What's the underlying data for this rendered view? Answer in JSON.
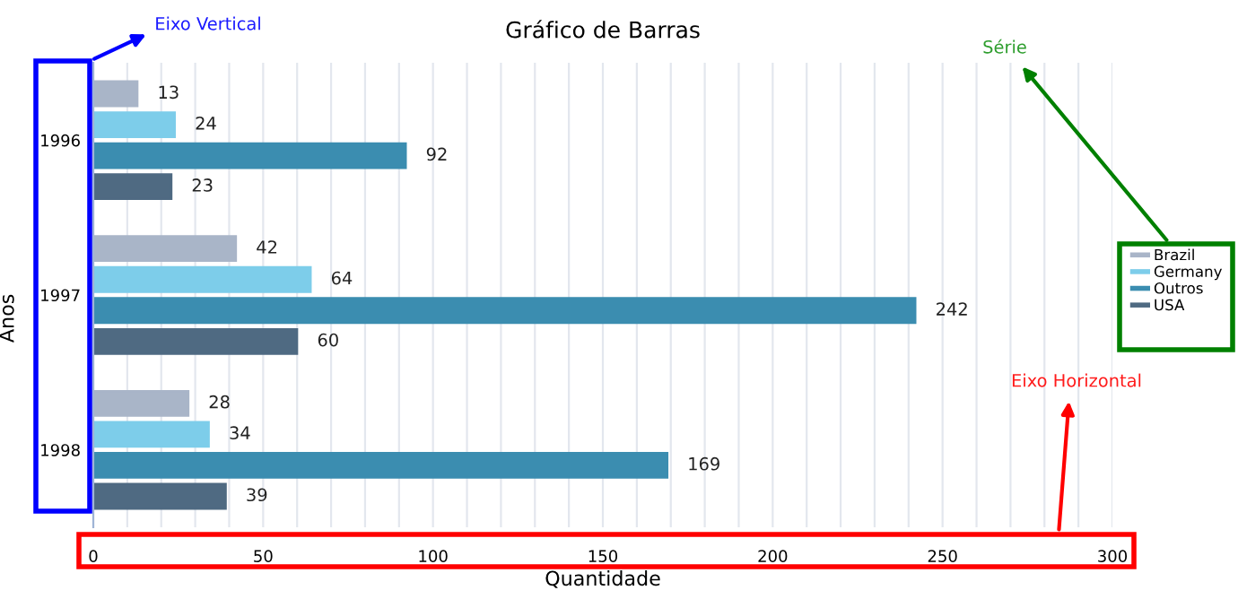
{
  "chart_data": {
    "type": "bar",
    "orientation": "horizontal",
    "title": "Gráfico de Barras",
    "xlabel": "Quantidade",
    "ylabel": "Anos",
    "categories": [
      "1996",
      "1997",
      "1998"
    ],
    "series": [
      {
        "name": "Brazil",
        "color": "#a9b5c8",
        "values": [
          13,
          42,
          28
        ]
      },
      {
        "name": "Germany",
        "color": "#7dcdea",
        "values": [
          24,
          64,
          34
        ]
      },
      {
        "name": "Outros",
        "color": "#3b8db0",
        "values": [
          92,
          242,
          169
        ]
      },
      {
        "name": "USA",
        "color": "#4f6a82",
        "values": [
          23,
          60,
          39
        ]
      }
    ],
    "xlim": [
      0,
      300
    ],
    "xticks": [
      0,
      {
        "value": 10,
        "label": null
      },
      {
        "value": 20,
        "label": null
      },
      {
        "value": 30,
        "label": null
      },
      {
        "value": 40,
        "label": null
      },
      50,
      {
        "value": 60,
        "label": null
      },
      {
        "value": 70,
        "label": null
      },
      {
        "value": 80,
        "label": null
      },
      {
        "value": 90,
        "label": null
      },
      100,
      {
        "value": 110,
        "label": null
      },
      {
        "value": 120,
        "label": null
      },
      {
        "value": 130,
        "label": null
      },
      {
        "value": 140,
        "label": null
      },
      150,
      {
        "value": 160,
        "label": null
      },
      {
        "value": 170,
        "label": null
      },
      {
        "value": 180,
        "label": null
      },
      {
        "value": 190,
        "label": null
      },
      200,
      {
        "value": 210,
        "label": null
      },
      {
        "value": 220,
        "label": null
      },
      {
        "value": 230,
        "label": null
      },
      {
        "value": 240,
        "label": null
      },
      250,
      {
        "value": 260,
        "label": null
      },
      {
        "value": 270,
        "label": null
      },
      {
        "value": 280,
        "label": null
      },
      {
        "value": 290,
        "label": null
      },
      300
    ],
    "grid": "x",
    "legend": "right",
    "data_labels": true,
    "annotations": [
      "Eixo Vertical",
      "Série",
      "Eixo Horizontal"
    ]
  }
}
